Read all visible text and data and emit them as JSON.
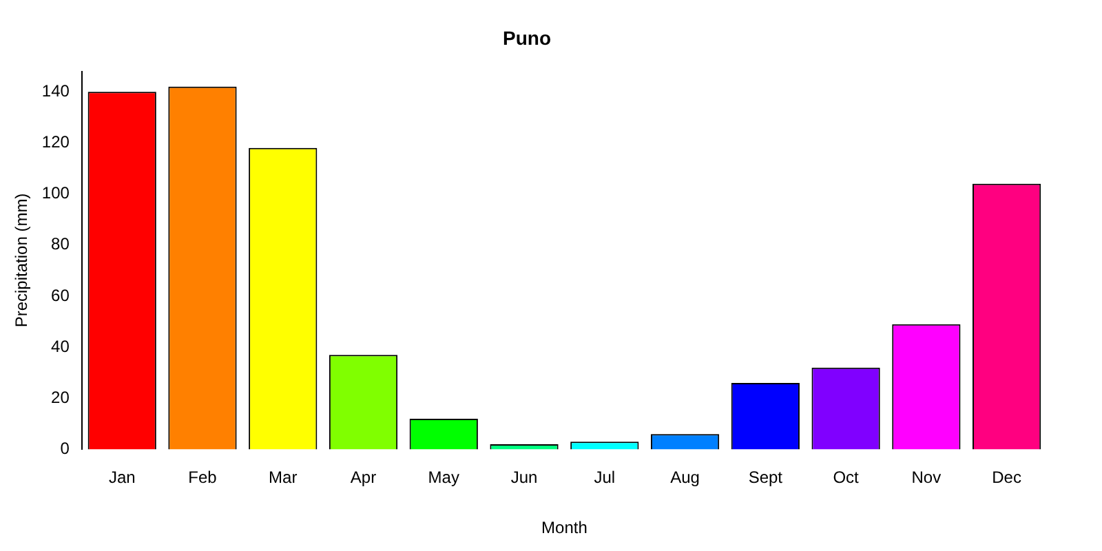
{
  "chart_data": {
    "type": "bar",
    "title": "Puno",
    "xlabel": "Month",
    "ylabel": "Precipitation (mm)",
    "categories": [
      "Jan",
      "Feb",
      "Mar",
      "Apr",
      "May",
      "Jun",
      "Jul",
      "Aug",
      "Sept",
      "Oct",
      "Nov",
      "Dec"
    ],
    "values": [
      140,
      142,
      118,
      37,
      12,
      2,
      3,
      6,
      26,
      32,
      49,
      104
    ],
    "colors": [
      "#ff0000",
      "#ff8000",
      "#ffff00",
      "#80ff00",
      "#00ff00",
      "#00ff80",
      "#00ffff",
      "#0080ff",
      "#0000ff",
      "#8000ff",
      "#ff00ff",
      "#ff0080"
    ],
    "ylim": [
      0,
      148
    ],
    "yticks": [
      0,
      20,
      40,
      60,
      80,
      100,
      120,
      140
    ],
    "grid": false,
    "legend": false
  }
}
